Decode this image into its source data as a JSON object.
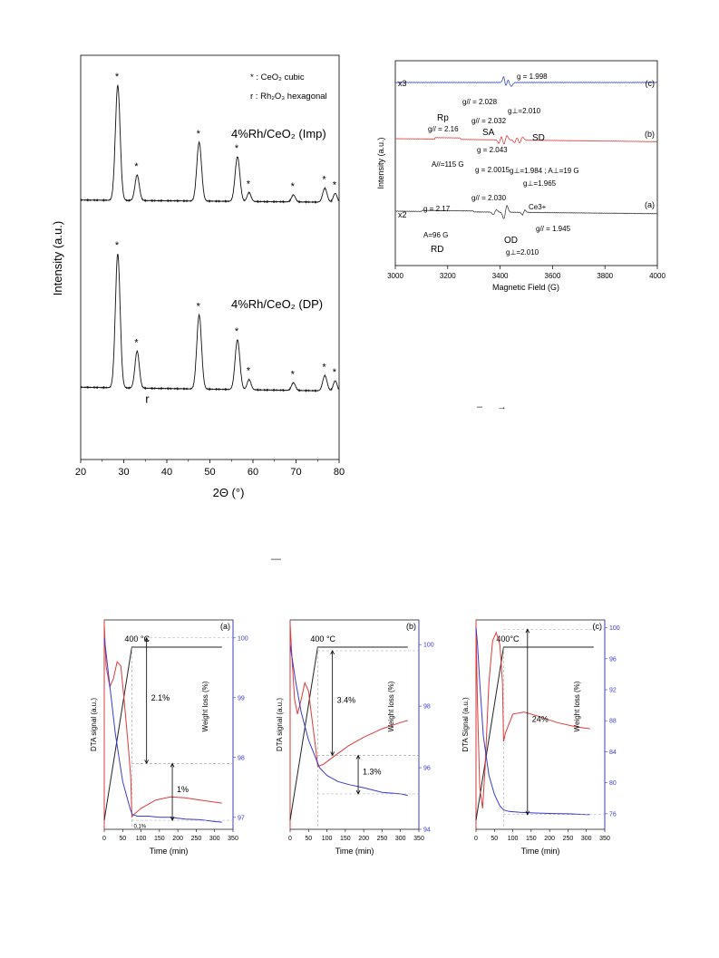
{
  "chart_data": [
    {
      "type": "line",
      "panel": "xrd",
      "xlabel": "2Θ (°)",
      "ylabel": "Intensity (a.u.)",
      "xlim": [
        20,
        80
      ],
      "xticks": [
        20,
        30,
        40,
        50,
        60,
        70,
        80
      ],
      "legend": {
        "line1": "* : CeO₂ cubic",
        "line2": "r : Rh₂O₃ hexagonal"
      },
      "series": [
        {
          "name": "4%Rh/CeO₂ (Imp)",
          "baseline": 0.52,
          "slope": -0.0003,
          "peaks": [
            {
              "x": 28.6,
              "h": 9.0,
              "w": 0.55
            },
            {
              "x": 33.1,
              "h": 2.0,
              "w": 0.5
            },
            {
              "x": 47.5,
              "h": 4.6,
              "w": 0.55
            },
            {
              "x": 56.4,
              "h": 3.5,
              "w": 0.55
            },
            {
              "x": 59.1,
              "h": 0.7,
              "w": 0.45
            },
            {
              "x": 69.4,
              "h": 0.55,
              "w": 0.45
            },
            {
              "x": 76.7,
              "h": 1.1,
              "w": 0.5
            },
            {
              "x": 79.1,
              "h": 0.7,
              "w": 0.45
            }
          ],
          "markers": [
            {
              "x": 28.6,
              "label": "*"
            },
            {
              "x": 33.1,
              "label": "*"
            },
            {
              "x": 47.5,
              "label": "*"
            },
            {
              "x": 56.4,
              "label": "*"
            },
            {
              "x": 59.1,
              "label": "*"
            },
            {
              "x": 69.4,
              "label": "*"
            },
            {
              "x": 76.7,
              "label": "*"
            },
            {
              "x": 79.1,
              "label": "*"
            }
          ]
        },
        {
          "name": "4%Rh/CeO₂ (DP)",
          "baseline": 0.55,
          "slope": -0.0005,
          "peaks": [
            {
              "x": 28.6,
              "h": 10.5,
              "w": 0.55
            },
            {
              "x": 33.1,
              "h": 2.9,
              "w": 0.5
            },
            {
              "x": 47.5,
              "h": 5.8,
              "w": 0.55
            },
            {
              "x": 56.4,
              "h": 3.9,
              "w": 0.55
            },
            {
              "x": 59.1,
              "h": 0.8,
              "w": 0.45
            },
            {
              "x": 69.4,
              "h": 0.6,
              "w": 0.45
            },
            {
              "x": 76.7,
              "h": 1.2,
              "w": 0.5
            },
            {
              "x": 79.1,
              "h": 0.8,
              "w": 0.45
            }
          ],
          "markers": [
            {
              "x": 28.6,
              "label": "*"
            },
            {
              "x": 33.1,
              "label": "*"
            },
            {
              "x": 35.0,
              "label": "r"
            },
            {
              "x": 47.5,
              "label": "*"
            },
            {
              "x": 56.4,
              "label": "*"
            },
            {
              "x": 59.1,
              "label": "*"
            },
            {
              "x": 69.4,
              "label": "*"
            },
            {
              "x": 76.7,
              "label": "*"
            },
            {
              "x": 79.1,
              "label": "*"
            }
          ]
        }
      ]
    },
    {
      "type": "line",
      "panel": "epr",
      "xlabel": "Magnetic Field (G)",
      "ylabel": "Intensity (a.u.)",
      "xlim": [
        3000,
        4000
      ],
      "xticks": [
        3000,
        3200,
        3400,
        3600,
        3800,
        4000
      ],
      "series": [
        {
          "name": "(c)",
          "prefix": "x3",
          "color": "#3a4bb8"
        },
        {
          "name": "(b)",
          "prefix": "",
          "color": "#e0403c"
        },
        {
          "name": "(a)",
          "prefix": "x2",
          "color": "#444444"
        }
      ],
      "annotations": [
        {
          "x": 3430,
          "text": "g = 1.998"
        },
        {
          "x": 3330,
          "text": "g// = 2.028"
        },
        {
          "x": 3450,
          "text": "g⊥=2.010"
        },
        {
          "x": 3375,
          "text": "g// = 2.032"
        },
        {
          "x": 3140,
          "text": "Rp"
        },
        {
          "x": 3140,
          "text": "g// = 2.16"
        },
        {
          "x": 3325,
          "text": "SA"
        },
        {
          "x": 3460,
          "text": "SD"
        },
        {
          "x": 3365,
          "text": "g = 2.043"
        },
        {
          "x": 3130,
          "text": "A//=115 G"
        },
        {
          "x": 3360,
          "text": "g = 2.0015"
        },
        {
          "x": 3450,
          "text": "g⊥=1.984 ; A⊥=19 G"
        },
        {
          "x": 3450,
          "text": "g⊥=1.965"
        },
        {
          "x": 3330,
          "text": "g// = 2.030"
        },
        {
          "x": 3090,
          "text": "g = 2.17"
        },
        {
          "x": 3480,
          "text": "Ce3+"
        },
        {
          "x": 3100,
          "text": "A=96 G"
        },
        {
          "x": 3110,
          "text": "RD"
        },
        {
          "x": 3400,
          "text": "OD"
        },
        {
          "x": 3420,
          "text": "g⊥=2.010"
        },
        {
          "x": 3500,
          "text": "g// = 1.945"
        }
      ]
    },
    {
      "type": "line",
      "panel": "(a)",
      "xlabel": "Time (min)",
      "ylabel": "DTA signal (a.u.)",
      "ylabel2": "Weight loss (%)",
      "xlim": [
        0,
        350
      ],
      "xticks": [
        0,
        50,
        100,
        150,
        200,
        250,
        300,
        350
      ],
      "y2lim": [
        96.8,
        100.3
      ],
      "y2ticks": [
        97,
        98,
        99,
        100
      ],
      "temp_label": "400 °C",
      "ramp_end": 75,
      "dta": {
        "x": [
          0,
          5,
          15,
          25,
          35,
          45,
          55,
          65,
          72,
          75,
          80,
          100,
          140,
          180,
          220,
          260,
          300,
          320
        ],
        "y": [
          0.98,
          0.78,
          0.68,
          0.72,
          0.8,
          0.78,
          0.6,
          0.4,
          0.25,
          0.06,
          0.07,
          0.1,
          0.14,
          0.155,
          0.15,
          0.14,
          0.13,
          0.125
        ]
      },
      "weight": {
        "x": [
          0,
          5,
          15,
          30,
          50,
          70,
          76,
          90,
          120,
          150,
          180,
          220,
          260,
          300,
          320
        ],
        "y": [
          100.0,
          99.75,
          99.2,
          98.4,
          97.6,
          97.15,
          97.05,
          97.02,
          97.02,
          97.0,
          97.0,
          96.97,
          96.96,
          96.93,
          96.92
        ]
      },
      "annotations": [
        "2.1%",
        "1%",
        "0.1%"
      ],
      "bracket1": [
        100.0,
        97.9
      ],
      "bracket2": [
        97.9,
        96.95
      ]
    },
    {
      "type": "line",
      "panel": "(b)",
      "xlabel": "Time (min)",
      "ylabel": "DTA signal (a.u.)",
      "ylabel2": "Weight loss (%)",
      "xlim": [
        0,
        350
      ],
      "xticks": [
        0,
        50,
        100,
        150,
        200,
        250,
        300,
        350
      ],
      "y2lim": [
        94,
        100.8
      ],
      "y2ticks": [
        94,
        96,
        98,
        100
      ],
      "temp_label": "400 °C",
      "ramp_end": 75,
      "dta": {
        "x": [
          0,
          5,
          12,
          20,
          30,
          40,
          50,
          60,
          70,
          75,
          90,
          120,
          160,
          200,
          250,
          300,
          320
        ],
        "y": [
          0.98,
          0.82,
          0.62,
          0.55,
          0.62,
          0.7,
          0.66,
          0.52,
          0.38,
          0.3,
          0.31,
          0.35,
          0.4,
          0.44,
          0.48,
          0.51,
          0.52
        ]
      },
      "weight": {
        "x": [
          0,
          5,
          15,
          30,
          50,
          70,
          80,
          100,
          130,
          160,
          200,
          250,
          300,
          320
        ],
        "y": [
          100.0,
          99.6,
          98.8,
          97.8,
          96.9,
          96.3,
          96.0,
          95.75,
          95.55,
          95.45,
          95.35,
          95.2,
          95.15,
          95.1
        ]
      },
      "annotations": [
        "3.4%",
        "1.3%"
      ],
      "bracket1": [
        99.8,
        96.4
      ],
      "bracket2": [
        96.4,
        95.15
      ]
    },
    {
      "type": "line",
      "panel": "(c)",
      "xlabel": "Time (min)",
      "ylabel": "DTA Signal (a.u.)",
      "ylabel2": "Weight loss (%)",
      "xlim": [
        0,
        350
      ],
      "xticks": [
        0,
        50,
        100,
        150,
        200,
        250,
        300,
        350
      ],
      "y2lim": [
        74,
        101
      ],
      "y2ticks": [
        76,
        80,
        84,
        88,
        92,
        96,
        100
      ],
      "temp_label": "400°C",
      "ramp_end": 75,
      "dta": {
        "x": [
          0,
          4,
          10,
          18,
          25,
          35,
          45,
          55,
          65,
          72,
          75,
          80,
          100,
          130,
          170,
          220,
          270,
          310
        ],
        "y": [
          0.98,
          0.6,
          0.2,
          0.1,
          0.3,
          0.7,
          0.9,
          0.94,
          0.88,
          0.7,
          0.42,
          0.46,
          0.55,
          0.56,
          0.54,
          0.51,
          0.49,
          0.48
        ]
      },
      "weight": {
        "x": [
          0,
          4,
          10,
          20,
          35,
          50,
          65,
          75,
          90,
          120,
          160,
          200,
          250,
          300,
          310
        ],
        "y": [
          100.0,
          98.0,
          93.0,
          86.0,
          81.0,
          78.5,
          77.0,
          76.5,
          76.3,
          76.2,
          76.1,
          76.05,
          76.0,
          75.9,
          75.9
        ]
      },
      "annotations": [
        "24%"
      ],
      "bracket1": [
        99.8,
        75.9
      ]
    }
  ],
  "dashes": [
    "–",
    "→",
    "—"
  ]
}
